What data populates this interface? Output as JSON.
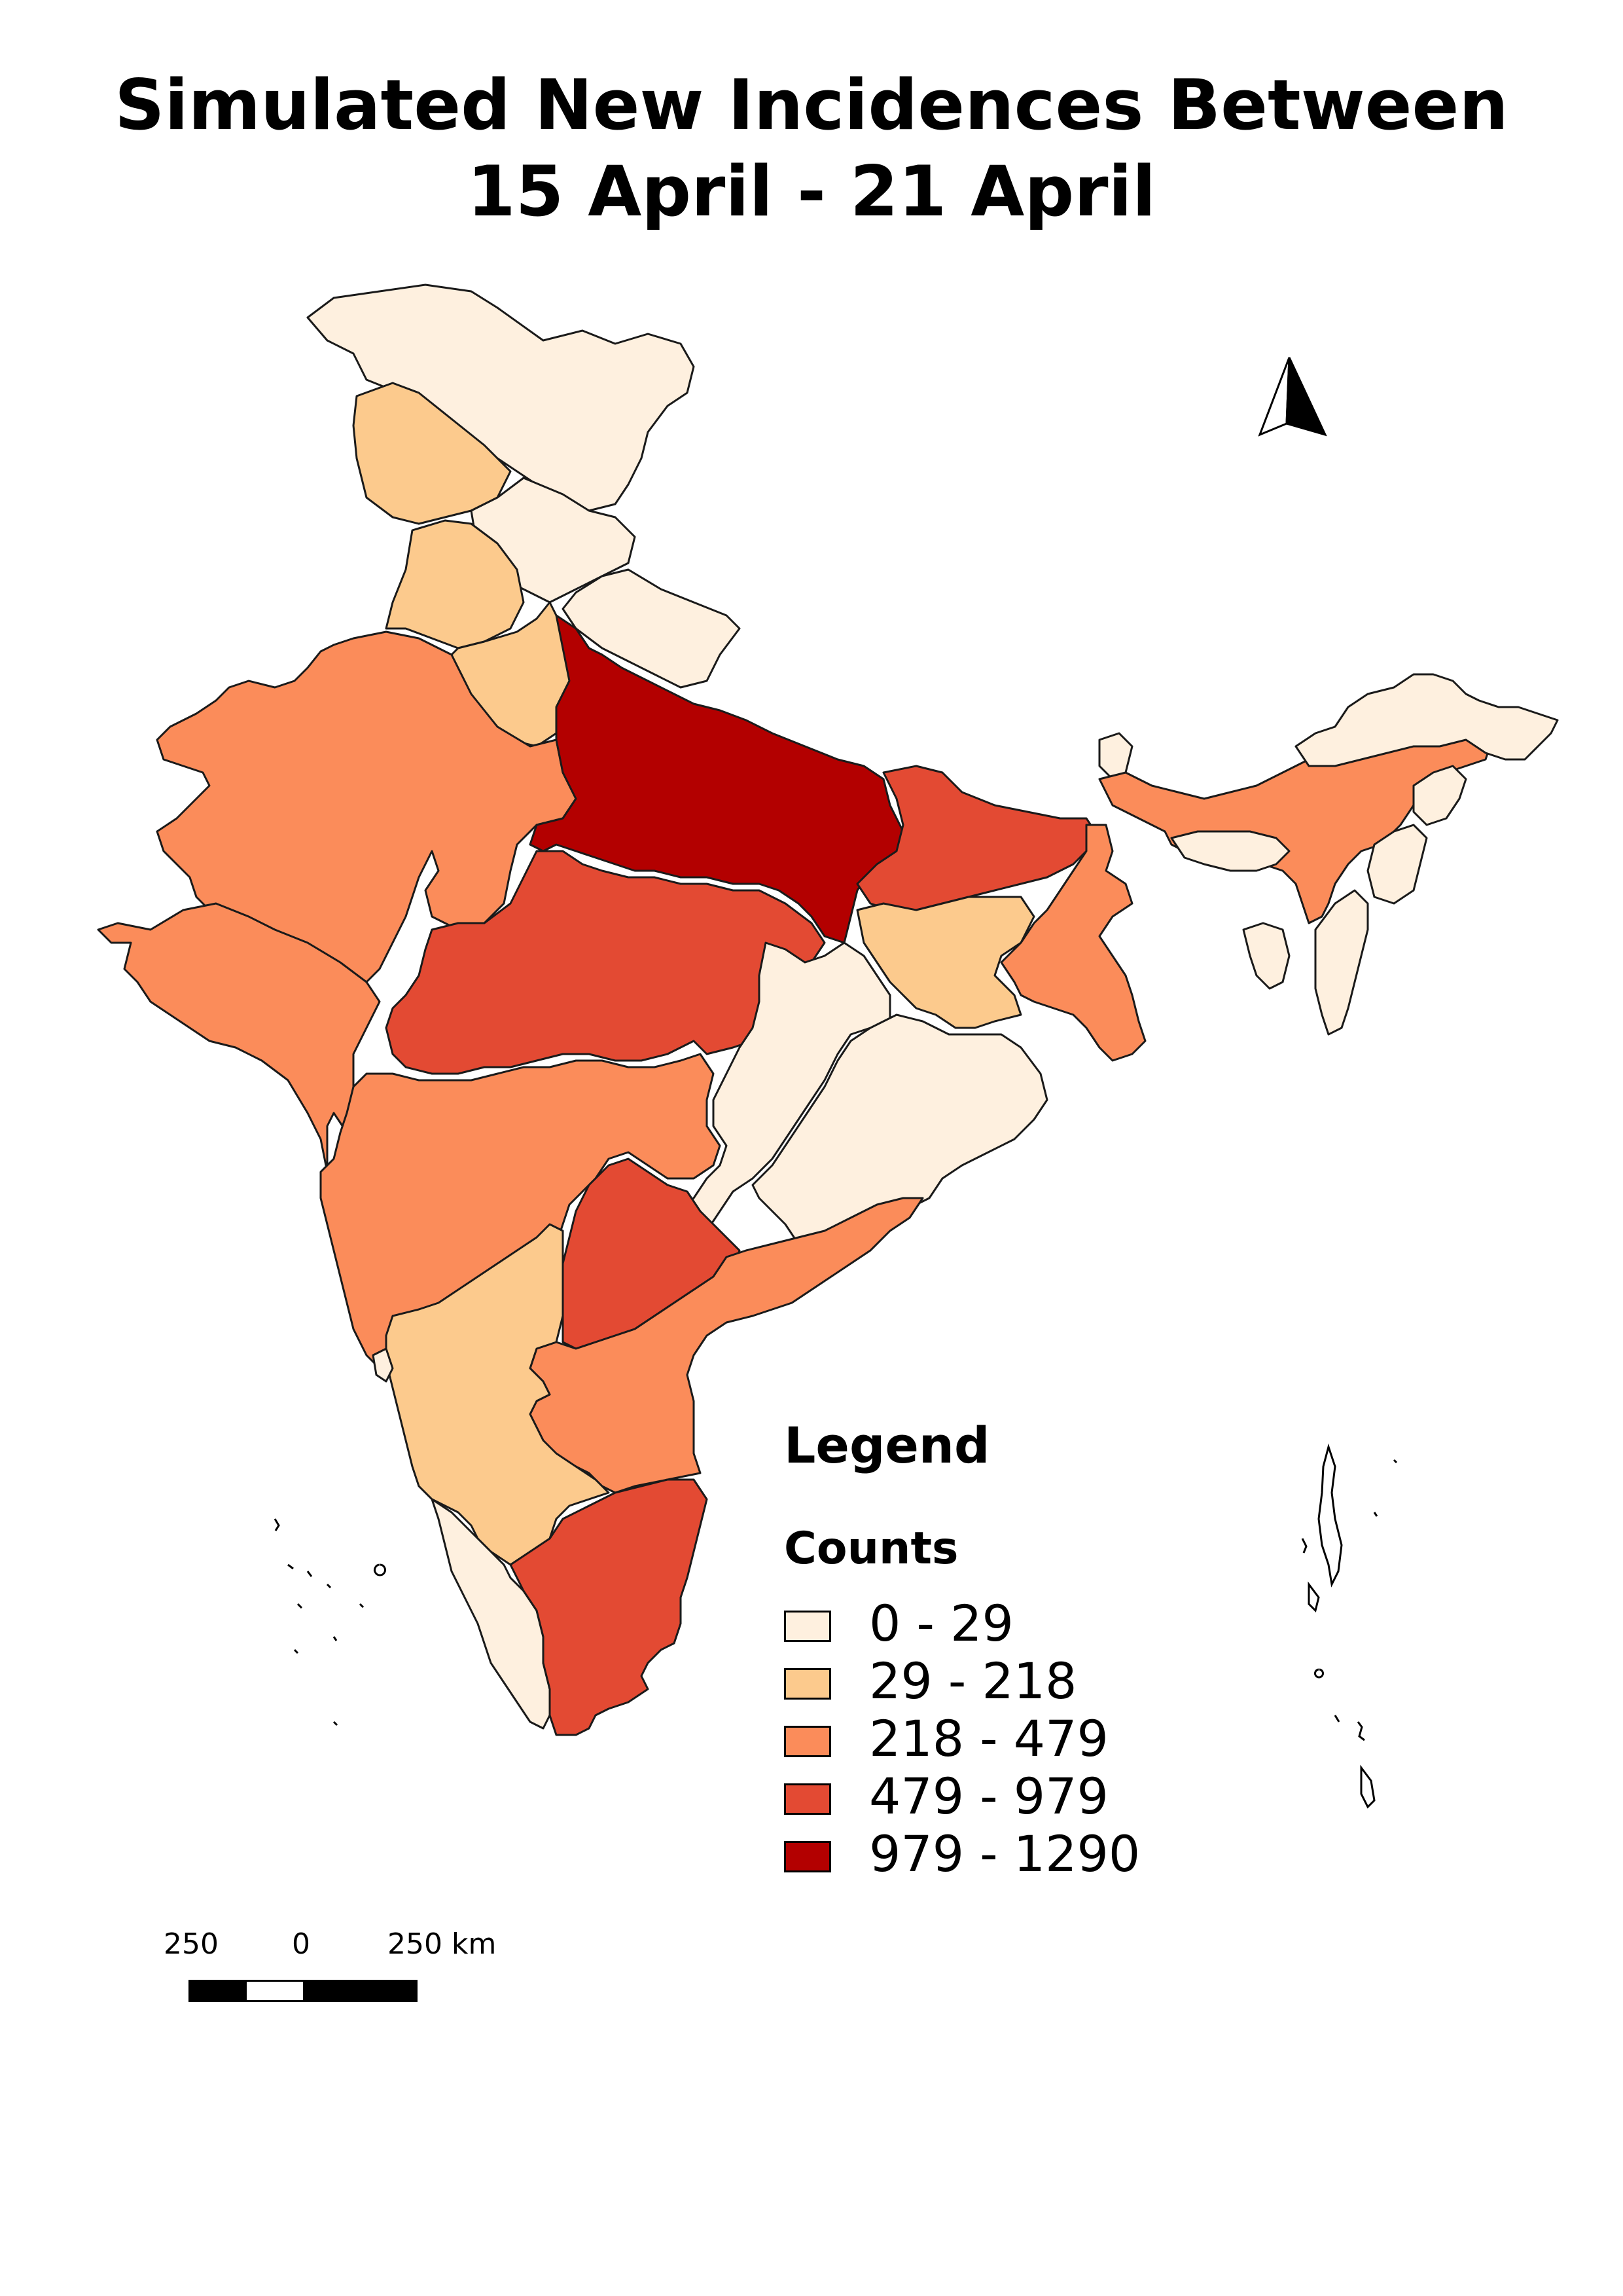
{
  "title": {
    "line1": "Simulated New Incidences Between",
    "line2": "15 April - 21 April"
  },
  "north_arrow": {
    "icon": "north-arrow-icon"
  },
  "legend": {
    "title": "Legend",
    "subtitle": "Counts",
    "classes": [
      {
        "label": "0 - 29",
        "color": "#fef0df"
      },
      {
        "label": "29 - 218",
        "color": "#fcca8d"
      },
      {
        "label": "218 - 479",
        "color": "#fb8c5a"
      },
      {
        "label": "479 - 979",
        "color": "#e34a33"
      },
      {
        "label": "979 - 1290",
        "color": "#b30000"
      }
    ]
  },
  "scale_bar": {
    "labels": [
      "250",
      "0",
      "250 km"
    ],
    "segment_colors": [
      "#000000",
      "#ffffff",
      "#000000",
      "#000000"
    ]
  },
  "regions": [
    {
      "name": "Jammu and Kashmir",
      "class": 0
    },
    {
      "name": "Himachal Pradesh",
      "class": 1
    },
    {
      "name": "Punjab",
      "class": 1
    },
    {
      "name": "Uttarakhand",
      "class": 0
    },
    {
      "name": "Haryana",
      "class": 1
    },
    {
      "name": "Rajasthan",
      "class": 2
    },
    {
      "name": "Uttar Pradesh",
      "class": 4
    },
    {
      "name": "Gujarat",
      "class": 2
    },
    {
      "name": "Madhya Pradesh",
      "class": 3
    },
    {
      "name": "Bihar",
      "class": 3
    },
    {
      "name": "Jharkhand",
      "class": 1
    },
    {
      "name": "West Bengal",
      "class": 2
    },
    {
      "name": "Chhattisgarh",
      "class": 0
    },
    {
      "name": "Odisha",
      "class": 0
    },
    {
      "name": "Maharashtra",
      "class": 2
    },
    {
      "name": "Telangana",
      "class": 3
    },
    {
      "name": "Andhra Pradesh",
      "class": 2
    },
    {
      "name": "Karnataka",
      "class": 1
    },
    {
      "name": "Kerala",
      "class": 0
    },
    {
      "name": "Tamil Nadu",
      "class": 3
    },
    {
      "name": "Goa",
      "class": 0
    },
    {
      "name": "Sikkim",
      "class": 0
    },
    {
      "name": "Assam",
      "class": 2
    },
    {
      "name": "Arunachal Pradesh",
      "class": 0
    },
    {
      "name": "Meghalaya",
      "class": 0
    },
    {
      "name": "Nagaland",
      "class": 0
    },
    {
      "name": "Manipur",
      "class": 0
    },
    {
      "name": "Mizoram",
      "class": 0
    },
    {
      "name": "Tripura",
      "class": 0
    }
  ]
}
